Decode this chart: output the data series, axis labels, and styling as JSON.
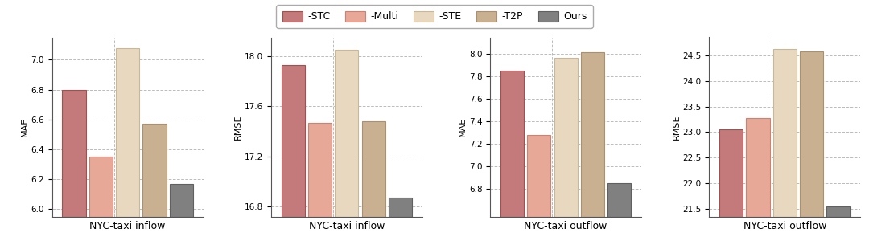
{
  "subplots": [
    {
      "title": "NYC-taxi inflow",
      "ylabel": "MAE",
      "values": [
        6.8,
        6.35,
        7.08,
        6.57,
        6.17
      ],
      "ylim": [
        5.95,
        7.15
      ],
      "yticks": [
        6.0,
        6.2,
        6.4,
        6.6,
        6.8,
        7.0
      ]
    },
    {
      "title": "NYC-taxi inflow",
      "ylabel": "RMSE",
      "values": [
        17.93,
        17.47,
        18.05,
        17.48,
        16.87
      ],
      "ylim": [
        16.72,
        18.15
      ],
      "yticks": [
        16.8,
        17.2,
        17.6,
        18.0
      ]
    },
    {
      "title": "NYC-taxi outflow",
      "ylabel": "MAE",
      "values": [
        7.85,
        7.28,
        7.97,
        8.02,
        6.85
      ],
      "ylim": [
        6.55,
        8.15
      ],
      "yticks": [
        6.8,
        7.0,
        7.2,
        7.4,
        7.6,
        7.8,
        8.0
      ]
    },
    {
      "title": "NYC-taxi outflow",
      "ylabel": "RMSE",
      "values": [
        23.05,
        23.28,
        24.62,
        24.58,
        21.55
      ],
      "ylim": [
        21.35,
        24.85
      ],
      "yticks": [
        21.5,
        22.0,
        22.5,
        23.0,
        23.5,
        24.0,
        24.5
      ]
    }
  ],
  "bar_colors": [
    "#c47a7a",
    "#e8a898",
    "#e8d8c0",
    "#c8b090",
    "#808080"
  ],
  "legend_labels": [
    "-STC",
    "-Multi",
    "-STE",
    "-T2P",
    "Ours"
  ],
  "legend_edgecolors": [
    "#a05050",
    "#d08070",
    "#c8b898",
    "#a89070",
    "#606060"
  ],
  "bar_width": 0.14,
  "figure_bg": "#ffffff",
  "axes_bg": "#ffffff",
  "grid_color": "#aaaaaa",
  "title_fontsize": 9,
  "label_fontsize": 8,
  "tick_fontsize": 7.5,
  "legend_fontsize": 9
}
